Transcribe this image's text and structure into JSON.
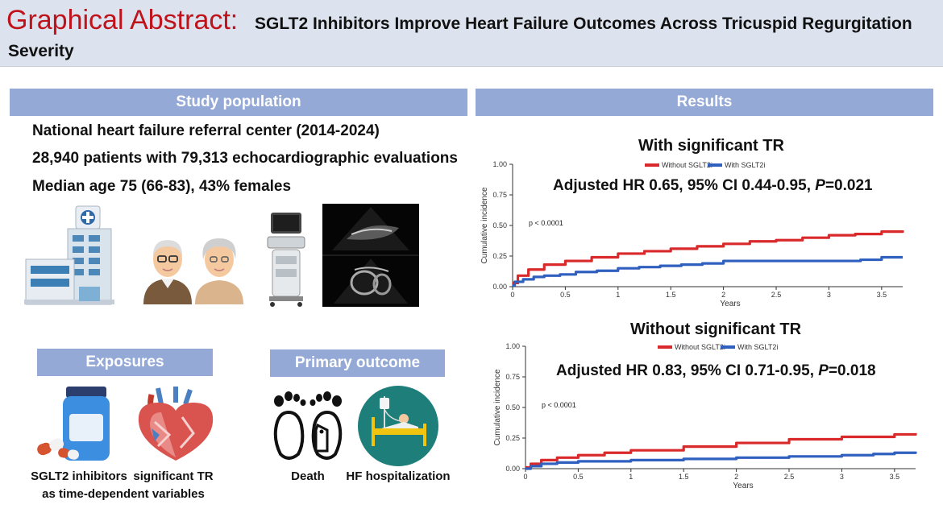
{
  "header": {
    "title_main": "Graphical Abstract:",
    "title_sub": "SGLT2 Inhibitors Improve Heart Failure Outcomes Across Tricuspid Regurgitation",
    "title_sub2": "Severity"
  },
  "study_population": {
    "heading": "Study population",
    "line1": "National heart failure referral center (2014-2024)",
    "line2": "28,940 patients with 79,313 echocardiographic evaluations",
    "line3": "Median age 75 (66-83), 43% females",
    "icons": [
      "hospital-icon",
      "elderly-couple-icon",
      "ultrasound-machine-icon",
      "echocardiogram-image"
    ]
  },
  "exposures": {
    "heading": "Exposures",
    "label1": "SGLT2 inhibitors",
    "label2": "significant TR",
    "label3": "as time-dependent variables"
  },
  "primary_outcome": {
    "heading": "Primary outcome",
    "label1": "Death",
    "label2": "HF hospitalization"
  },
  "results": {
    "heading": "Results",
    "panel1": {
      "title": "With significant TR",
      "hr_text": "Adjusted HR 0.65, 95% CI 0.44-0.95,",
      "hr_p_label": "P",
      "hr_p_value": "=0.021",
      "pvalue": "p < 0.0001"
    },
    "panel2": {
      "title": "Without significant TR",
      "hr_text": "Adjusted HR 0.83, 95% CI 0.71-0.95,",
      "hr_p_label": "P",
      "hr_p_value": "=0.018",
      "pvalue": "p < 0.0001"
    }
  },
  "colors": {
    "red_series": "#d9292b",
    "blue_series": "#2f5fbf",
    "bar": "#94a9d6",
    "header_bg": "#dde3ee",
    "title_red": "#c0121a"
  },
  "chart_data": [
    {
      "type": "line",
      "title": "With significant TR",
      "xlabel": "Years",
      "ylabel": "Cumulative incidence",
      "xlim": [
        0,
        3.7
      ],
      "ylim": [
        0,
        1.0
      ],
      "xticks": [
        "0",
        "0.5",
        "1",
        "1.5",
        "2",
        "2.5",
        "3",
        "3.5"
      ],
      "yticks": [
        "0.00",
        "0.25",
        "0.50",
        "0.75",
        "1.00"
      ],
      "legend": "top",
      "series": [
        {
          "name": "Without SGLT2i",
          "color": "#d9292b",
          "x": [
            0,
            0.05,
            0.15,
            0.3,
            0.5,
            0.75,
            1.0,
            1.25,
            1.5,
            1.75,
            2.0,
            2.25,
            2.5,
            2.75,
            3.0,
            3.25,
            3.5,
            3.7
          ],
          "y": [
            0.03,
            0.09,
            0.14,
            0.18,
            0.21,
            0.24,
            0.27,
            0.29,
            0.31,
            0.33,
            0.35,
            0.37,
            0.38,
            0.4,
            0.42,
            0.43,
            0.45,
            0.46
          ]
        },
        {
          "name": "With SGLT2i",
          "color": "#2f5fbf",
          "x": [
            0,
            0.02,
            0.1,
            0.2,
            0.3,
            0.45,
            0.6,
            0.8,
            1.0,
            1.2,
            1.4,
            1.6,
            1.8,
            2.0,
            2.5,
            3.0,
            3.3,
            3.5,
            3.7
          ],
          "y": [
            0.01,
            0.04,
            0.06,
            0.08,
            0.09,
            0.1,
            0.12,
            0.13,
            0.15,
            0.16,
            0.17,
            0.18,
            0.19,
            0.21,
            0.21,
            0.21,
            0.22,
            0.24,
            0.24
          ]
        }
      ]
    },
    {
      "type": "line",
      "title": "Without significant TR",
      "xlabel": "Years",
      "ylabel": "Cumulative incidence",
      "xlim": [
        0,
        3.7
      ],
      "ylim": [
        0,
        1.0
      ],
      "xticks": [
        "0",
        "0.5",
        "1",
        "1.5",
        "2",
        "2.5",
        "3",
        "3.5"
      ],
      "yticks": [
        "0.00",
        "0.25",
        "0.50",
        "0.75",
        "1.00"
      ],
      "legend": "top",
      "series": [
        {
          "name": "Without SGLT2i",
          "color": "#d9292b",
          "x": [
            0,
            0.05,
            0.15,
            0.3,
            0.5,
            0.75,
            1.0,
            1.5,
            2.0,
            2.5,
            3.0,
            3.5,
            3.7
          ],
          "y": [
            0.01,
            0.04,
            0.07,
            0.09,
            0.11,
            0.13,
            0.15,
            0.18,
            0.21,
            0.24,
            0.26,
            0.28,
            0.29
          ]
        },
        {
          "name": "With SGLT2i",
          "color": "#2f5fbf",
          "x": [
            0,
            0.05,
            0.15,
            0.3,
            0.5,
            1.0,
            1.5,
            2.0,
            2.5,
            3.0,
            3.3,
            3.5,
            3.7
          ],
          "y": [
            0.0,
            0.02,
            0.04,
            0.05,
            0.06,
            0.07,
            0.08,
            0.09,
            0.1,
            0.11,
            0.12,
            0.13,
            0.14
          ]
        }
      ]
    }
  ]
}
